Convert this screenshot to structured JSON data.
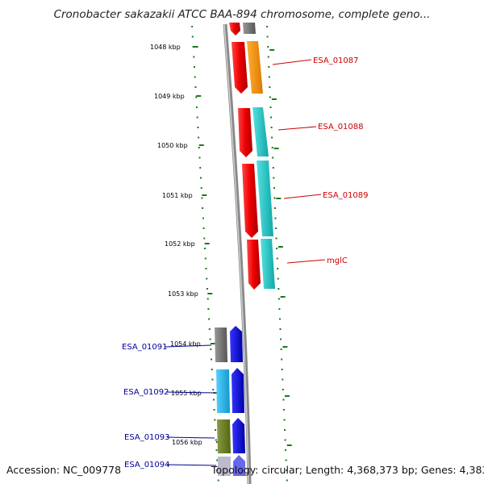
{
  "title": "Cronobacter sakazakii ATCC BAA-894 chromosome, complete geno...",
  "footer": {
    "accession": "Accession: NC_009778",
    "topology": "Topology: circular; Length: 4,368,373 bp; Genes: 4,383"
  },
  "ticks": [
    "1048 kbp",
    "1049 kbp",
    "1050 kbp",
    "1051 kbp",
    "1052 kbp",
    "1053 kbp",
    "1054 kbp",
    "1055 kbp",
    "1056 kbp"
  ],
  "genes_right": [
    "ESA_01087",
    "ESA_01088",
    "ESA_01089",
    "mglC"
  ],
  "genes_left": [
    "ESA_01091",
    "ESA_01092",
    "ESA_01093",
    "ESA_01094"
  ],
  "colors": {
    "red_label": "#cc0000",
    "blue_label": "#000099",
    "tick_green": "#1a7a1a",
    "backbone": "#888888",
    "forward_strand": "#ff0000",
    "reverse_strand": "#0000ee",
    "orange": "#ff9900",
    "cyan": "#1cc8c8",
    "gray": "#777777",
    "light_blue": "#22bbee",
    "olive": "#667722"
  }
}
